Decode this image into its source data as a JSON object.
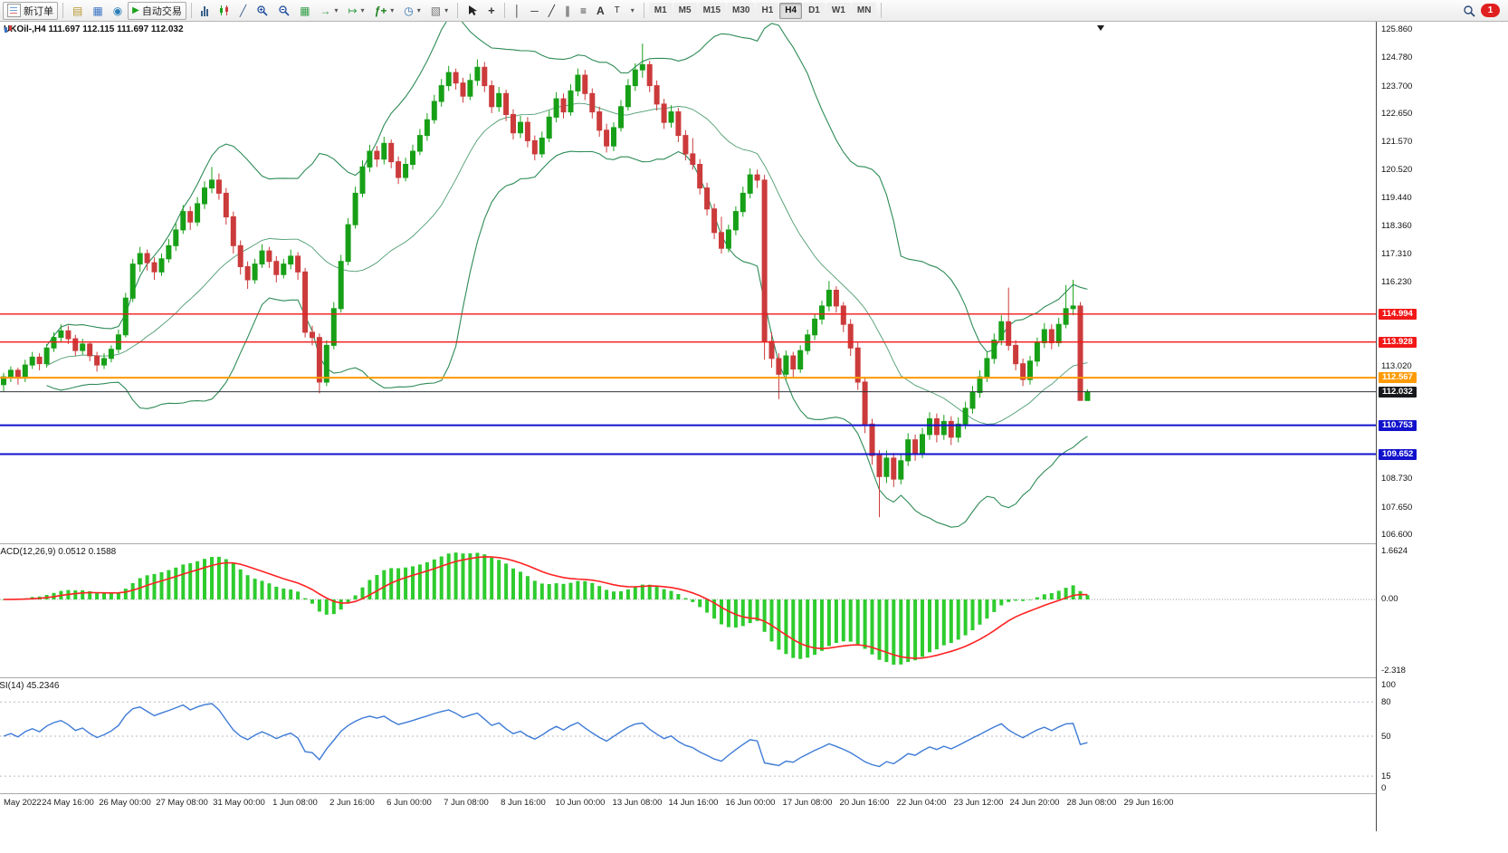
{
  "toolbar": {
    "new_order_label": "新订单",
    "autotrading_label": "自动交易",
    "timeframes": [
      "M1",
      "M5",
      "M15",
      "M30",
      "H1",
      "H4",
      "D1",
      "W1",
      "MN"
    ],
    "active_timeframe": "H4",
    "notification_count": "1",
    "icons": {
      "caret": "▾",
      "market_watch": "▤",
      "data_window": "▦",
      "navigator": "◉",
      "play": "▶",
      "line_chart": "╱",
      "tile_windows": "▦",
      "auto_scroll": "→",
      "chart_shift": "↦",
      "indicators": "ƒ+",
      "periods": "◷",
      "templates": "▧",
      "crosshair": "+",
      "vertical_line": "│",
      "horizontal_line": "─",
      "trendline": "╱",
      "channel": "∥",
      "fibonacci": "≡",
      "text": "A",
      "text_label": "T"
    }
  },
  "main_chart": {
    "title": "UKOil-,H4 111.697 112.115 111.697 112.032"
  },
  "macd": {
    "label": "MACD(12,26,9) 0.0512 0.1588",
    "value": "0.0512",
    "signal_value": "0.1588",
    "axis_labels": [
      "1.6624",
      "0.00",
      "-2.318"
    ]
  },
  "rsi": {
    "label": "RSI(14) 45.2346",
    "value": "45.2346",
    "axis_labels": [
      "100",
      "80",
      "50",
      "15",
      "0"
    ],
    "levels": [
      80,
      50,
      15
    ]
  },
  "colors": {
    "up": "#17a017",
    "down": "#cc3b3b",
    "bollinger": "#2E8B57",
    "macd_histogram": "#2ecc2e",
    "macd_signal": "#ff2222",
    "rsi_line": "#3e7bd6",
    "grid": "#c8c8c8"
  },
  "chart_data": {
    "type": "candlestick",
    "symbol": "UKOil-",
    "timeframe": "H4",
    "last_bar": {
      "open": "111.697",
      "high": "112.115",
      "low": "111.697",
      "close": "112.032"
    },
    "bollinger": {
      "period": 20,
      "deviation": 2
    },
    "y_axis_labels": [
      "125.860",
      "124.780",
      "123.700",
      "122.650",
      "121.570",
      "120.520",
      "119.440",
      "118.360",
      "117.310",
      "116.230",
      "113.020",
      "108.730",
      "107.650",
      "106.600"
    ],
    "x_axis_labels": [
      "May 2022",
      "24 May 16:00",
      "26 May 00:00",
      "27 May 08:00",
      "31 May 00:00",
      "1 Jun 08:00",
      "2 Jun 16:00",
      "6 Jun 00:00",
      "7 Jun 08:00",
      "8 Jun 16:00",
      "10 Jun 00:00",
      "13 Jun 08:00",
      "14 Jun 16:00",
      "16 Jun 00:00",
      "17 Jun 08:00",
      "20 Jun 16:00",
      "22 Jun 04:00",
      "23 Jun 12:00",
      "24 Jun 20:00",
      "28 Jun 08:00",
      "29 Jun 16:00"
    ],
    "levels": [
      {
        "price": 114.994,
        "label": "114.994",
        "color": "#f21818",
        "width": 1.4
      },
      {
        "price": 113.928,
        "label": "113.928",
        "color": "#f21818",
        "width": 1.4
      },
      {
        "price": 112.567,
        "label": "112.567",
        "color": "#ff9a00",
        "width": 2
      },
      {
        "price": 112.032,
        "label": "112.032",
        "color": "#2e3338",
        "width": 1,
        "tag": "#17191c"
      },
      {
        "price": 110.753,
        "label": "110.753",
        "color": "#1212cd",
        "width": 2
      },
      {
        "price": 109.652,
        "label": "109.652",
        "color": "#1212cd",
        "width": 2
      }
    ],
    "ohlc": [
      [
        112.3,
        112.75,
        112.05,
        112.6
      ],
      [
        112.6,
        113.0,
        112.4,
        112.85
      ],
      [
        112.85,
        112.95,
        112.3,
        112.55
      ],
      [
        112.55,
        113.25,
        112.4,
        113.05
      ],
      [
        113.05,
        113.55,
        112.9,
        113.35
      ],
      [
        113.35,
        113.5,
        112.85,
        113.1
      ],
      [
        113.1,
        113.85,
        112.95,
        113.7
      ],
      [
        113.7,
        114.3,
        113.55,
        114.1
      ],
      [
        114.1,
        114.6,
        113.9,
        114.35
      ],
      [
        114.35,
        114.55,
        113.85,
        114.05
      ],
      [
        114.05,
        114.2,
        113.4,
        113.6
      ],
      [
        113.6,
        114.05,
        113.45,
        113.85
      ],
      [
        113.85,
        113.95,
        113.2,
        113.4
      ],
      [
        113.4,
        113.55,
        112.8,
        113.05
      ],
      [
        113.05,
        113.5,
        112.9,
        113.3
      ],
      [
        113.3,
        113.8,
        113.15,
        113.65
      ],
      [
        113.65,
        114.4,
        113.5,
        114.2
      ],
      [
        114.2,
        115.8,
        114.1,
        115.6
      ],
      [
        115.6,
        117.1,
        115.45,
        116.9
      ],
      [
        116.9,
        117.55,
        116.6,
        117.3
      ],
      [
        117.3,
        117.45,
        116.65,
        116.95
      ],
      [
        116.95,
        117.15,
        116.3,
        116.6
      ],
      [
        116.6,
        117.3,
        116.45,
        117.1
      ],
      [
        117.1,
        117.85,
        116.95,
        117.6
      ],
      [
        117.6,
        118.45,
        117.4,
        118.2
      ],
      [
        118.2,
        119.15,
        118.05,
        118.9
      ],
      [
        118.9,
        119.1,
        118.2,
        118.5
      ],
      [
        118.5,
        119.45,
        118.35,
        119.2
      ],
      [
        119.2,
        120.05,
        119.0,
        119.8
      ],
      [
        119.8,
        120.6,
        119.6,
        120.1
      ],
      [
        120.1,
        120.35,
        119.35,
        119.6
      ],
      [
        119.6,
        119.8,
        118.4,
        118.7
      ],
      [
        118.7,
        118.9,
        117.3,
        117.6
      ],
      [
        117.6,
        117.8,
        116.5,
        116.8
      ],
      [
        116.8,
        117.0,
        115.95,
        116.3
      ],
      [
        116.3,
        117.1,
        116.15,
        116.9
      ],
      [
        116.9,
        117.65,
        116.75,
        117.4
      ],
      [
        117.4,
        117.55,
        116.75,
        117.0
      ],
      [
        117.0,
        117.2,
        116.2,
        116.5
      ],
      [
        116.5,
        117.1,
        116.35,
        116.9
      ],
      [
        116.9,
        117.45,
        116.7,
        117.2
      ],
      [
        117.2,
        117.35,
        116.3,
        116.6
      ],
      [
        116.6,
        116.75,
        114.1,
        114.3
      ],
      [
        114.3,
        114.55,
        113.8,
        114.1
      ],
      [
        114.1,
        114.25,
        111.97,
        112.4
      ],
      [
        112.4,
        114.0,
        112.25,
        113.8
      ],
      [
        113.8,
        115.45,
        113.65,
        115.2
      ],
      [
        115.2,
        117.25,
        115.05,
        117.0
      ],
      [
        117.0,
        118.65,
        116.85,
        118.4
      ],
      [
        118.4,
        119.85,
        118.25,
        119.6
      ],
      [
        119.6,
        120.85,
        119.45,
        120.6
      ],
      [
        120.6,
        121.45,
        120.4,
        121.2
      ],
      [
        121.2,
        121.4,
        120.6,
        120.9
      ],
      [
        120.9,
        121.75,
        120.7,
        121.5
      ],
      [
        121.5,
        121.65,
        120.55,
        120.8
      ],
      [
        120.8,
        121.0,
        119.95,
        120.2
      ],
      [
        120.2,
        120.95,
        120.05,
        120.7
      ],
      [
        120.7,
        121.45,
        120.5,
        121.2
      ],
      [
        121.2,
        122.05,
        121.05,
        121.8
      ],
      [
        121.8,
        122.65,
        121.6,
        122.4
      ],
      [
        122.4,
        123.35,
        122.25,
        123.1
      ],
      [
        123.1,
        123.95,
        122.9,
        123.7
      ],
      [
        123.7,
        124.45,
        123.5,
        124.2
      ],
      [
        124.2,
        124.35,
        123.55,
        123.8
      ],
      [
        123.8,
        124.0,
        123.05,
        123.3
      ],
      [
        123.3,
        124.15,
        123.15,
        123.9
      ],
      [
        123.9,
        124.7,
        123.7,
        124.4
      ],
      [
        124.4,
        124.6,
        123.45,
        123.7
      ],
      [
        123.7,
        123.9,
        122.65,
        122.9
      ],
      [
        122.9,
        123.65,
        122.7,
        123.4
      ],
      [
        123.4,
        123.55,
        122.35,
        122.6
      ],
      [
        122.6,
        122.8,
        121.65,
        121.9
      ],
      [
        121.9,
        122.55,
        121.7,
        122.3
      ],
      [
        122.3,
        122.5,
        121.35,
        121.6
      ],
      [
        121.6,
        121.8,
        120.85,
        121.1
      ],
      [
        121.1,
        121.95,
        120.95,
        121.7
      ],
      [
        121.7,
        122.75,
        121.55,
        122.5
      ],
      [
        122.5,
        123.45,
        122.3,
        123.2
      ],
      [
        123.2,
        123.4,
        122.45,
        122.7
      ],
      [
        122.7,
        123.75,
        122.55,
        123.5
      ],
      [
        123.5,
        124.35,
        123.3,
        124.1
      ],
      [
        124.1,
        124.3,
        123.15,
        123.4
      ],
      [
        123.4,
        123.6,
        122.45,
        122.7
      ],
      [
        122.7,
        122.9,
        121.75,
        122.0
      ],
      [
        122.0,
        122.25,
        121.15,
        121.4
      ],
      [
        121.4,
        122.3,
        121.2,
        122.1
      ],
      [
        122.1,
        123.15,
        121.95,
        122.9
      ],
      [
        122.9,
        123.95,
        122.75,
        123.7
      ],
      [
        123.7,
        124.55,
        123.5,
        124.3
      ],
      [
        124.3,
        125.3,
        124.0,
        124.5
      ],
      [
        124.5,
        124.65,
        123.45,
        123.7
      ],
      [
        123.7,
        123.9,
        122.75,
        123.0
      ],
      [
        123.0,
        123.2,
        122.05,
        122.3
      ],
      [
        122.3,
        122.95,
        122.1,
        122.7
      ],
      [
        122.7,
        122.85,
        121.55,
        121.8
      ],
      [
        121.8,
        122.0,
        120.85,
        121.1
      ],
      [
        121.1,
        121.7,
        120.5,
        120.7
      ],
      [
        120.7,
        120.9,
        119.55,
        119.8
      ],
      [
        119.8,
        120.0,
        118.75,
        119.0
      ],
      [
        119.0,
        119.2,
        117.85,
        118.1
      ],
      [
        118.1,
        118.7,
        117.3,
        117.5
      ],
      [
        117.5,
        118.4,
        117.35,
        118.2
      ],
      [
        118.2,
        119.1,
        118.0,
        118.9
      ],
      [
        118.9,
        119.85,
        118.7,
        119.6
      ],
      [
        119.6,
        120.55,
        119.4,
        120.3
      ],
      [
        120.3,
        120.5,
        119.8,
        120.1
      ],
      [
        120.1,
        120.3,
        113.25,
        113.95
      ],
      [
        113.95,
        114.3,
        112.95,
        113.3
      ],
      [
        113.3,
        113.5,
        111.75,
        112.7
      ],
      [
        112.7,
        113.6,
        112.5,
        113.4
      ],
      [
        113.4,
        113.55,
        112.6,
        112.9
      ],
      [
        112.9,
        113.8,
        112.75,
        113.6
      ],
      [
        113.6,
        114.4,
        113.45,
        114.2
      ],
      [
        114.2,
        115.0,
        114.0,
        114.8
      ],
      [
        114.8,
        115.5,
        114.6,
        115.3
      ],
      [
        115.3,
        116.25,
        115.1,
        115.9
      ],
      [
        115.9,
        116.05,
        115.05,
        115.3
      ],
      [
        115.3,
        115.45,
        114.3,
        114.6
      ],
      [
        114.6,
        114.8,
        113.4,
        113.7
      ],
      [
        113.7,
        113.9,
        112.1,
        112.4
      ],
      [
        112.4,
        112.6,
        110.45,
        110.8
      ],
      [
        110.8,
        111.0,
        109.25,
        109.6
      ],
      [
        109.6,
        109.8,
        107.25,
        108.8
      ],
      [
        108.8,
        109.8,
        108.55,
        109.5
      ],
      [
        109.5,
        109.7,
        108.4,
        108.7
      ],
      [
        108.7,
        109.65,
        108.5,
        109.4
      ],
      [
        109.4,
        110.45,
        109.2,
        110.2
      ],
      [
        110.2,
        110.4,
        109.4,
        109.7
      ],
      [
        109.7,
        110.65,
        109.5,
        110.4
      ],
      [
        110.4,
        111.25,
        110.2,
        111.0
      ],
      [
        111.0,
        111.2,
        110.1,
        110.4
      ],
      [
        110.4,
        111.15,
        110.2,
        110.9
      ],
      [
        110.9,
        111.1,
        110.0,
        110.3
      ],
      [
        110.3,
        111.05,
        110.1,
        110.8
      ],
      [
        110.8,
        111.65,
        110.6,
        111.4
      ],
      [
        111.4,
        112.25,
        111.2,
        112.0
      ],
      [
        112.0,
        112.85,
        111.8,
        112.6
      ],
      [
        112.6,
        113.55,
        112.4,
        113.3
      ],
      [
        113.3,
        114.25,
        113.1,
        114.0
      ],
      [
        114.0,
        114.95,
        113.8,
        114.7
      ],
      [
        114.7,
        116.0,
        113.6,
        113.8
      ],
      [
        113.8,
        114.0,
        112.85,
        113.1
      ],
      [
        113.1,
        113.3,
        112.25,
        112.5
      ],
      [
        112.5,
        113.4,
        112.3,
        113.2
      ],
      [
        113.2,
        114.1,
        113.0,
        113.9
      ],
      [
        113.9,
        114.65,
        113.7,
        114.4
      ],
      [
        114.4,
        114.6,
        113.65,
        113.9
      ],
      [
        113.9,
        114.85,
        113.75,
        114.6
      ],
      [
        114.6,
        116.1,
        114.45,
        115.2
      ],
      [
        115.2,
        116.3,
        114.95,
        115.3
      ],
      [
        115.3,
        115.45,
        111.7,
        111.7
      ],
      [
        111.7,
        112.12,
        111.7,
        112.03
      ]
    ]
  }
}
